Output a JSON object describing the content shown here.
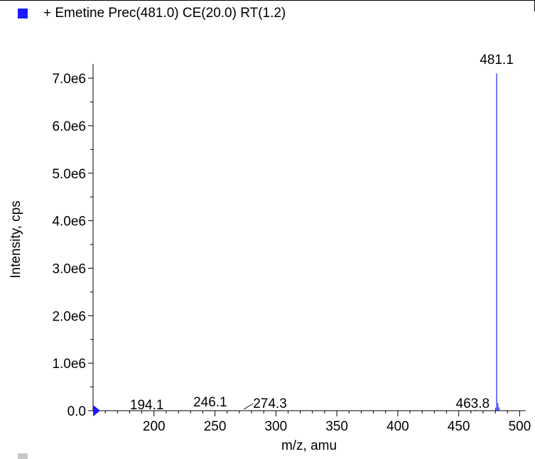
{
  "legend": {
    "label": "+ Emetine Prec(481.0) CE(20.0) RT(1.2)",
    "color": "#1a1aff"
  },
  "chart_data": {
    "type": "bar",
    "subtype": "mass-spectrum-sticks",
    "title": "",
    "xlabel": "m/z, amu",
    "ylabel": "Intensity, cps",
    "xlim": [
      150,
      505
    ],
    "ylim": [
      0,
      7300000
    ],
    "x_ticks": [
      200,
      250,
      300,
      350,
      400,
      450,
      500
    ],
    "y_ticks": [
      0,
      1000000,
      2000000,
      3000000,
      4000000,
      5000000,
      6000000,
      7000000
    ],
    "y_tick_labels": [
      "0.0",
      "1.0e6",
      "2.0e6",
      "3.0e6",
      "4.0e6",
      "5.0e6",
      "6.0e6",
      "7.0e6"
    ],
    "series": [
      {
        "color": "#2020ff",
        "x": [
          194.1,
          246.1,
          274.3,
          463.8,
          480.3,
          481.1,
          482.1,
          483.1
        ],
        "y": [
          12000,
          15000,
          8000,
          20000,
          60000,
          7100000,
          160000,
          70000
        ]
      }
    ],
    "peak_labels": [
      {
        "x": 194.1,
        "text": "194.1"
      },
      {
        "x": 246.1,
        "text": "246.1"
      },
      {
        "x": 274.3,
        "text": "274.3"
      },
      {
        "x": 463.8,
        "text": "463.8"
      },
      {
        "x": 481.1,
        "text": "481.1"
      }
    ],
    "grid": false,
    "legend_position": "top-left"
  }
}
